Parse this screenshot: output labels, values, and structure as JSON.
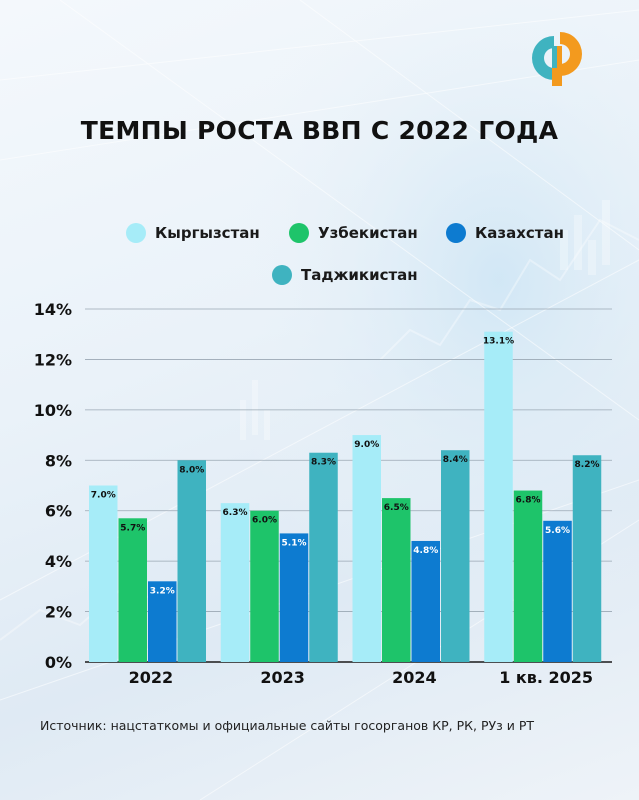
{
  "title": "ТЕМПЫ РОСТА ВВП С 2022 ГОДА",
  "source": "Источник: нацстаткомы и официальные сайты госорганов КР, РК, РУз и РТ",
  "chart_data": {
    "type": "bar",
    "categories": [
      "2022",
      "2023",
      "2024",
      "1 кв. 2025"
    ],
    "series": [
      {
        "name": "Кыргызстан",
        "color": "#a6ecf8",
        "values": [
          7.0,
          6.3,
          9.0,
          13.1
        ],
        "labels": [
          "7.0%",
          "6.3%",
          "9.0%",
          "13.1%"
        ]
      },
      {
        "name": "Узбекистан",
        "color": "#1ec46a",
        "values": [
          5.7,
          6.0,
          6.5,
          6.8
        ],
        "labels": [
          "5.7%",
          "6.0%",
          "6.5%",
          "6.8%"
        ]
      },
      {
        "name": "Казахстан",
        "color": "#0d7bd0",
        "values": [
          3.2,
          5.1,
          4.8,
          5.6
        ],
        "labels": [
          "3.2%",
          "5.1%",
          "4.8%",
          "5.6%"
        ]
      },
      {
        "name": "Таджикистан",
        "color": "#3fb3c0",
        "values": [
          8.0,
          8.3,
          8.4,
          8.2
        ],
        "labels": [
          "8.0%",
          "8.3%",
          "8.4%",
          "8.2%"
        ]
      }
    ],
    "ylim": [
      0,
      14
    ],
    "yticks": [
      "0%",
      "2%",
      "4%",
      "6%",
      "8%",
      "10%",
      "12%",
      "14%"
    ],
    "ytick_values": [
      0,
      2,
      4,
      6,
      8,
      10,
      12,
      14
    ],
    "grid": true,
    "legend": "top"
  }
}
